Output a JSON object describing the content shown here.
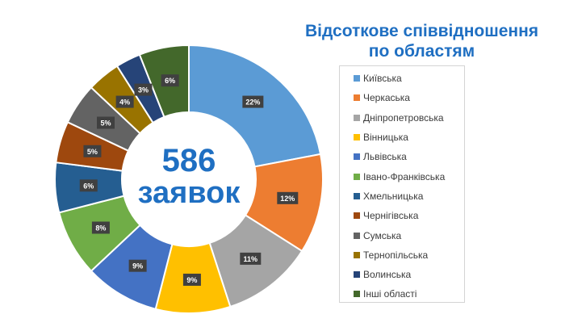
{
  "title_line1": "Відсоткове співвідношення",
  "title_line2": "по областям",
  "center_number": "586",
  "center_text": "заявок",
  "chart_data": {
    "type": "pie",
    "donut": true,
    "title": "Відсоткове співвідношення по областям",
    "legend_position": "right",
    "categories": [
      "Київська",
      "Черкаська",
      "Дніпропетровська",
      "Вінницька",
      "Львівська",
      "Івано-Франківська",
      "Хмельницька",
      "Чернігівська",
      "Сумська",
      "Тернопільська",
      "Волинська",
      "Інші області"
    ],
    "values": [
      22,
      12,
      11,
      9,
      9,
      8,
      6,
      5,
      5,
      4,
      3,
      6
    ],
    "labels": [
      "22%",
      "12%",
      "11%",
      "9%",
      "9%",
      "8%",
      "6%",
      "5%",
      "5%",
      "4%",
      "3%",
      "6%"
    ],
    "colors": [
      "#5b9bd5",
      "#ed7d31",
      "#a5a5a5",
      "#ffc000",
      "#4472c4",
      "#70ad47",
      "#255e91",
      "#9e480e",
      "#636363",
      "#997300",
      "#264478",
      "#43682b"
    ]
  }
}
